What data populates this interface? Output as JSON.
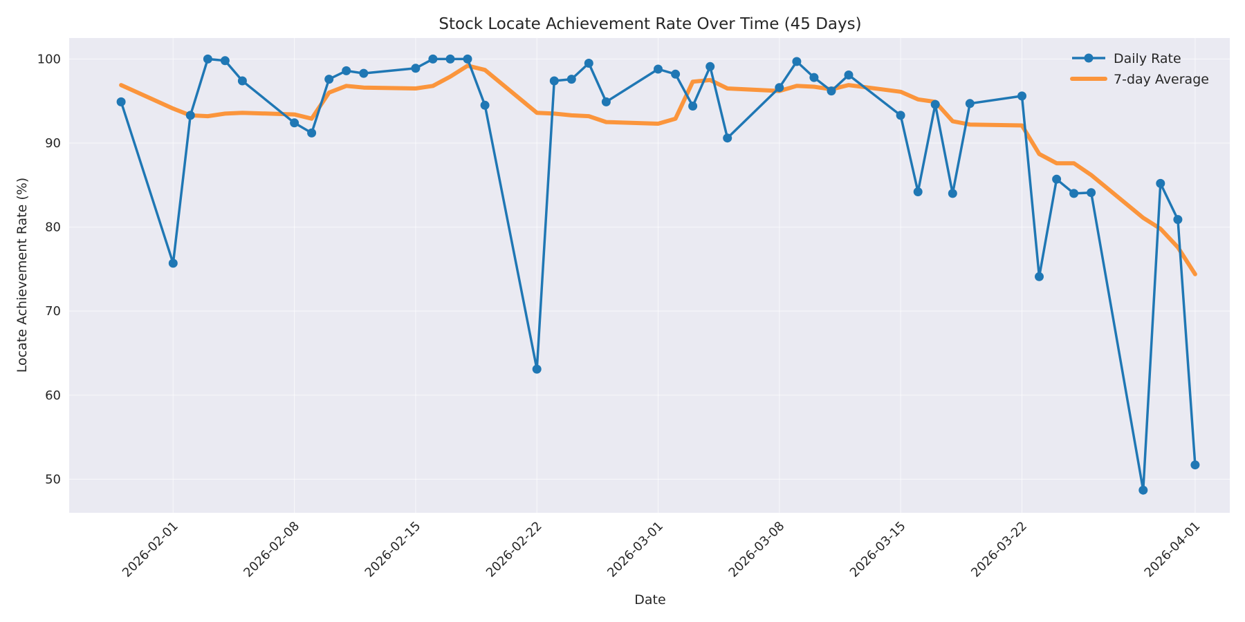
{
  "chart_data": {
    "type": "line",
    "title": "Stock Locate Achievement Rate Over Time (45 Days)",
    "xlabel": "Date",
    "ylabel": "Locate Achievement Rate (%)",
    "xlim": [
      "2026-01-26",
      "2026-04-03"
    ],
    "ylim": [
      46,
      102.5
    ],
    "y_ticks": [
      50,
      60,
      70,
      80,
      90,
      100
    ],
    "x_ticks": [
      "2026-02-01",
      "2026-02-08",
      "2026-02-15",
      "2026-02-22",
      "2026-03-01",
      "2026-03-08",
      "2026-03-15",
      "2026-03-22",
      "2026-04-01"
    ],
    "grid": true,
    "legend_position": "top-right",
    "background_color": "#eaeaf2",
    "x": [
      "2026-01-29",
      "2026-02-01",
      "2026-02-02",
      "2026-02-03",
      "2026-02-04",
      "2026-02-05",
      "2026-02-08",
      "2026-02-09",
      "2026-02-10",
      "2026-02-11",
      "2026-02-12",
      "2026-02-15",
      "2026-02-16",
      "2026-02-17",
      "2026-02-18",
      "2026-02-19",
      "2026-02-22",
      "2026-02-23",
      "2026-02-24",
      "2026-02-25",
      "2026-02-26",
      "2026-03-01",
      "2026-03-02",
      "2026-03-03",
      "2026-03-04",
      "2026-03-05",
      "2026-03-08",
      "2026-03-09",
      "2026-03-10",
      "2026-03-11",
      "2026-03-12",
      "2026-03-15",
      "2026-03-16",
      "2026-03-17",
      "2026-03-18",
      "2026-03-19",
      "2026-03-22",
      "2026-03-23",
      "2026-03-24",
      "2026-03-25",
      "2026-03-26",
      "2026-03-29",
      "2026-03-30",
      "2026-03-31",
      "2026-04-01"
    ],
    "series": [
      {
        "name": "Daily Rate",
        "color": "#1f77b4",
        "marker": "circle",
        "values": [
          94.9,
          75.7,
          93.3,
          100.0,
          99.8,
          97.4,
          92.4,
          91.2,
          97.6,
          98.6,
          98.3,
          98.9,
          100.0,
          100.0,
          100.0,
          94.5,
          63.1,
          97.4,
          97.6,
          99.5,
          94.9,
          98.8,
          98.2,
          94.4,
          99.1,
          90.6,
          96.6,
          99.7,
          97.8,
          96.2,
          98.1,
          93.3,
          84.2,
          94.6,
          84.0,
          94.7,
          95.6,
          74.1,
          85.7,
          84.0,
          84.1,
          48.7,
          85.2,
          80.9,
          51.7
        ]
      },
      {
        "name": "7-day Average",
        "color": "#ff7f0e",
        "marker": "none",
        "values": [
          96.9,
          94.1,
          93.3,
          93.2,
          93.5,
          93.6,
          93.4,
          92.9,
          96.0,
          96.8,
          96.6,
          96.5,
          96.8,
          97.9,
          99.2,
          98.7,
          93.6,
          93.5,
          93.3,
          93.2,
          92.5,
          92.3,
          92.9,
          97.3,
          97.5,
          96.5,
          96.2,
          96.8,
          96.7,
          96.4,
          96.9,
          96.1,
          95.2,
          94.9,
          92.6,
          92.2,
          92.1,
          88.7,
          87.6,
          87.6,
          86.2,
          81.1,
          79.8,
          77.6,
          74.4
        ]
      }
    ]
  }
}
